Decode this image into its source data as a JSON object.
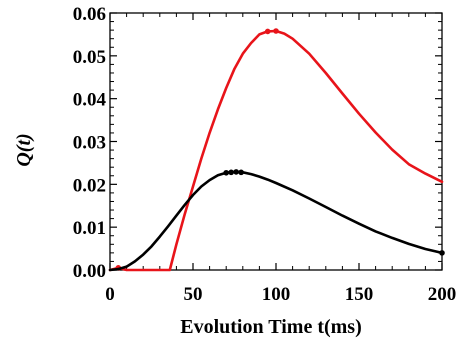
{
  "chart_data": {
    "type": "line",
    "title": "",
    "xlabel": "Evolution Time t(ms)",
    "ylabel": "Q(t)",
    "xlim": [
      0,
      200
    ],
    "ylim": [
      0,
      0.06
    ],
    "x_ticks": [
      0,
      50,
      100,
      150,
      200
    ],
    "x_tick_labels": [
      "0",
      "50",
      "100",
      "150",
      "200"
    ],
    "y_ticks": [
      0,
      0.01,
      0.02,
      0.03,
      0.04,
      0.05,
      0.06
    ],
    "y_tick_labels": [
      "0.00",
      "0.01",
      "0.02",
      "0.03",
      "0.04",
      "0.05",
      "0.06"
    ],
    "grid": false,
    "series": [
      {
        "color": "#e8141a",
        "x": [
          0,
          5,
          10,
          36,
          40,
          45,
          50,
          55,
          60,
          65,
          70,
          75,
          80,
          85,
          90,
          95,
          100,
          105,
          110,
          120,
          130,
          140,
          150,
          160,
          170,
          180,
          190,
          200
        ],
        "y": [
          0.0,
          0.0005,
          0.0,
          0.0,
          0.006,
          0.013,
          0.0195,
          0.026,
          0.032,
          0.0375,
          0.0425,
          0.047,
          0.0505,
          0.053,
          0.055,
          0.0557,
          0.0558,
          0.0552,
          0.054,
          0.0505,
          0.046,
          0.0412,
          0.0365,
          0.0321,
          0.0281,
          0.0247,
          0.0225,
          0.0206
        ],
        "markers": [
          {
            "x": 5,
            "y": 0.0005
          },
          {
            "x": 95,
            "y": 0.0557
          },
          {
            "x": 100,
            "y": 0.0558
          }
        ]
      },
      {
        "color": "#000000",
        "x": [
          0,
          5,
          10,
          15,
          20,
          25,
          30,
          35,
          40,
          45,
          50,
          55,
          60,
          65,
          70,
          75,
          80,
          85,
          90,
          95,
          100,
          110,
          120,
          130,
          140,
          150,
          160,
          170,
          180,
          190,
          200
        ],
        "y": [
          0.0,
          0.0002,
          0.0008,
          0.002,
          0.0036,
          0.0055,
          0.0078,
          0.0102,
          0.0127,
          0.0152,
          0.0175,
          0.0195,
          0.021,
          0.0221,
          0.0227,
          0.0229,
          0.0228,
          0.0224,
          0.0218,
          0.0211,
          0.0203,
          0.0186,
          0.0167,
          0.0147,
          0.0127,
          0.0108,
          0.009,
          0.0075,
          0.0061,
          0.0049,
          0.004
        ],
        "markers": [
          {
            "x": 70,
            "y": 0.0227
          },
          {
            "x": 73,
            "y": 0.0228
          },
          {
            "x": 76,
            "y": 0.0229
          },
          {
            "x": 79,
            "y": 0.0228
          },
          {
            "x": 200,
            "y": 0.004
          }
        ]
      }
    ]
  }
}
